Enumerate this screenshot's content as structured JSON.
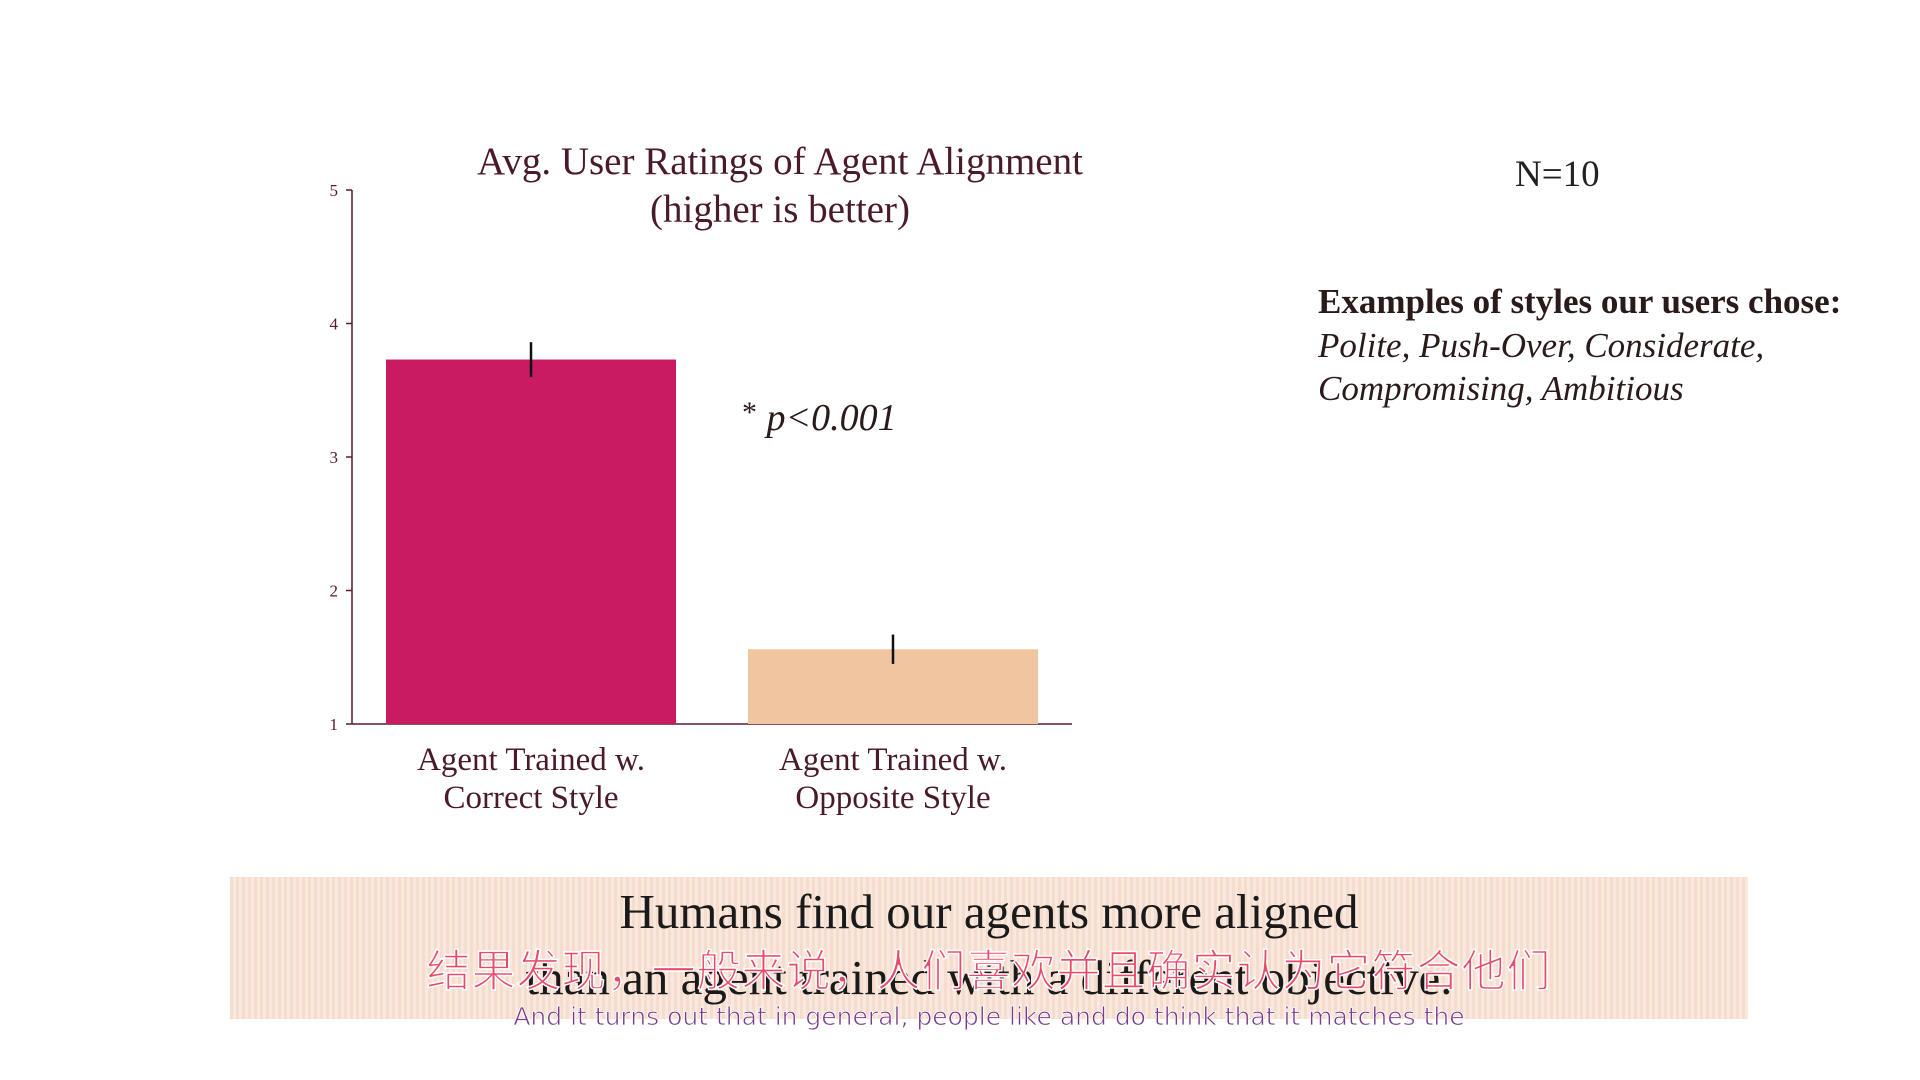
{
  "chart_data": {
    "type": "bar",
    "title": "Avg. User Ratings of Agent Alignment",
    "subtitle": "(higher is better)",
    "categories": [
      [
        "Agent Trained w.",
        "Correct Style"
      ],
      [
        "Agent Trained w.",
        "Opposite Style"
      ]
    ],
    "values": [
      3.73,
      1.56
    ],
    "errors": [
      0.13,
      0.11
    ],
    "colors": [
      "#c91b62",
      "#f0c5a0"
    ],
    "ylim": [
      1,
      5
    ],
    "yticks": [
      "1",
      "2",
      "3",
      "4",
      "5"
    ],
    "grid": false,
    "annotation": "p<0.001",
    "annotation_marker": "*"
  },
  "n_label": "N=10",
  "examples": {
    "heading": "Examples of styles our users chose:",
    "line1": "Polite, Push-Over, Considerate,",
    "line2": "Compromising, Ambitious"
  },
  "banner": {
    "line1": "Humans find our agents more aligned",
    "line2": "than an agent trained with a different objective."
  },
  "subtitles": {
    "zh": "结果发现，一般来说，人们喜欢并且确实认为它符合他们",
    "en": "And it turns out that in general, people like and do think that it matches the"
  }
}
